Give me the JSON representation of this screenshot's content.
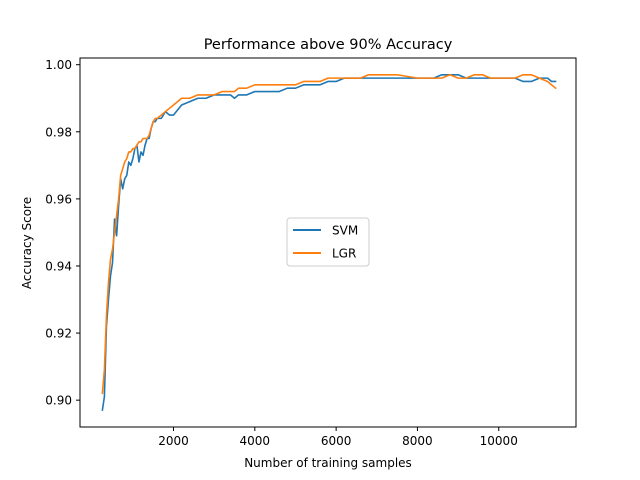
{
  "chart_data": {
    "type": "line",
    "title": "Performance above 90% Accuracy",
    "xlabel": "Number of training samples",
    "ylabel": "Accuracy Score",
    "xlim": [
      -300,
      11900
    ],
    "ylim": [
      0.892,
      1.002
    ],
    "xticks": [
      2000,
      4000,
      6000,
      8000,
      10000
    ],
    "xtick_labels": [
      "2000",
      "4000",
      "6000",
      "8000",
      "10000"
    ],
    "yticks": [
      0.9,
      0.92,
      0.94,
      0.96,
      0.98,
      1.0
    ],
    "ytick_labels": [
      "0.90",
      "0.92",
      "0.94",
      "0.96",
      "0.98",
      "1.00"
    ],
    "grid": false,
    "legend_position": "center",
    "series": [
      {
        "name": "SVM",
        "color": "#1f77b4",
        "x": [
          250,
          300,
          350,
          400,
          450,
          500,
          550,
          600,
          650,
          700,
          750,
          800,
          850,
          900,
          950,
          1000,
          1050,
          1100,
          1150,
          1200,
          1250,
          1300,
          1350,
          1400,
          1450,
          1500,
          1550,
          1600,
          1700,
          1800,
          1900,
          2000,
          2200,
          2400,
          2600,
          2800,
          3000,
          3200,
          3400,
          3500,
          3600,
          3800,
          4000,
          4200,
          4400,
          4600,
          4800,
          5000,
          5200,
          5400,
          5600,
          5800,
          6000,
          6200,
          6400,
          6600,
          6800,
          7000,
          7500,
          8000,
          8200,
          8400,
          8600,
          8800,
          9000,
          9200,
          9400,
          9600,
          9800,
          10000,
          10200,
          10400,
          10600,
          10800,
          11000,
          11200,
          11300,
          11400
        ],
        "y": [
          0.897,
          0.901,
          0.922,
          0.93,
          0.937,
          0.941,
          0.954,
          0.949,
          0.958,
          0.966,
          0.963,
          0.966,
          0.967,
          0.971,
          0.97,
          0.972,
          0.975,
          0.976,
          0.971,
          0.974,
          0.973,
          0.976,
          0.978,
          0.978,
          0.981,
          0.983,
          0.983,
          0.984,
          0.984,
          0.986,
          0.985,
          0.985,
          0.988,
          0.989,
          0.99,
          0.99,
          0.991,
          0.991,
          0.991,
          0.99,
          0.991,
          0.991,
          0.992,
          0.992,
          0.992,
          0.992,
          0.993,
          0.993,
          0.994,
          0.994,
          0.994,
          0.995,
          0.995,
          0.996,
          0.996,
          0.996,
          0.996,
          0.996,
          0.996,
          0.996,
          0.996,
          0.996,
          0.997,
          0.997,
          0.997,
          0.996,
          0.996,
          0.996,
          0.996,
          0.996,
          0.996,
          0.996,
          0.995,
          0.995,
          0.996,
          0.996,
          0.995,
          0.995
        ]
      },
      {
        "name": "LGR",
        "color": "#ff7f0e",
        "x": [
          250,
          300,
          350,
          400,
          450,
          500,
          550,
          600,
          650,
          700,
          750,
          800,
          850,
          900,
          950,
          1000,
          1050,
          1100,
          1150,
          1200,
          1250,
          1300,
          1350,
          1400,
          1450,
          1500,
          1550,
          1600,
          1700,
          1800,
          1900,
          2000,
          2200,
          2400,
          2600,
          2800,
          3000,
          3200,
          3400,
          3500,
          3600,
          3800,
          4000,
          4200,
          4400,
          4600,
          4800,
          5000,
          5200,
          5400,
          5600,
          5800,
          6000,
          6200,
          6400,
          6600,
          6800,
          7000,
          7500,
          8000,
          8200,
          8400,
          8600,
          8800,
          9000,
          9200,
          9400,
          9600,
          9800,
          10000,
          10200,
          10400,
          10600,
          10800,
          11000,
          11200,
          11300,
          11400
        ],
        "y": [
          0.902,
          0.909,
          0.925,
          0.935,
          0.942,
          0.945,
          0.95,
          0.955,
          0.96,
          0.967,
          0.969,
          0.971,
          0.972,
          0.974,
          0.974,
          0.975,
          0.975,
          0.976,
          0.977,
          0.977,
          0.978,
          0.978,
          0.978,
          0.979,
          0.981,
          0.983,
          0.984,
          0.984,
          0.985,
          0.986,
          0.987,
          0.988,
          0.99,
          0.99,
          0.991,
          0.991,
          0.991,
          0.992,
          0.992,
          0.992,
          0.993,
          0.993,
          0.994,
          0.994,
          0.994,
          0.994,
          0.994,
          0.994,
          0.995,
          0.995,
          0.995,
          0.996,
          0.996,
          0.996,
          0.996,
          0.996,
          0.997,
          0.997,
          0.997,
          0.996,
          0.996,
          0.996,
          0.996,
          0.997,
          0.996,
          0.996,
          0.997,
          0.997,
          0.996,
          0.996,
          0.996,
          0.996,
          0.997,
          0.997,
          0.996,
          0.995,
          0.994,
          0.993
        ]
      }
    ]
  }
}
